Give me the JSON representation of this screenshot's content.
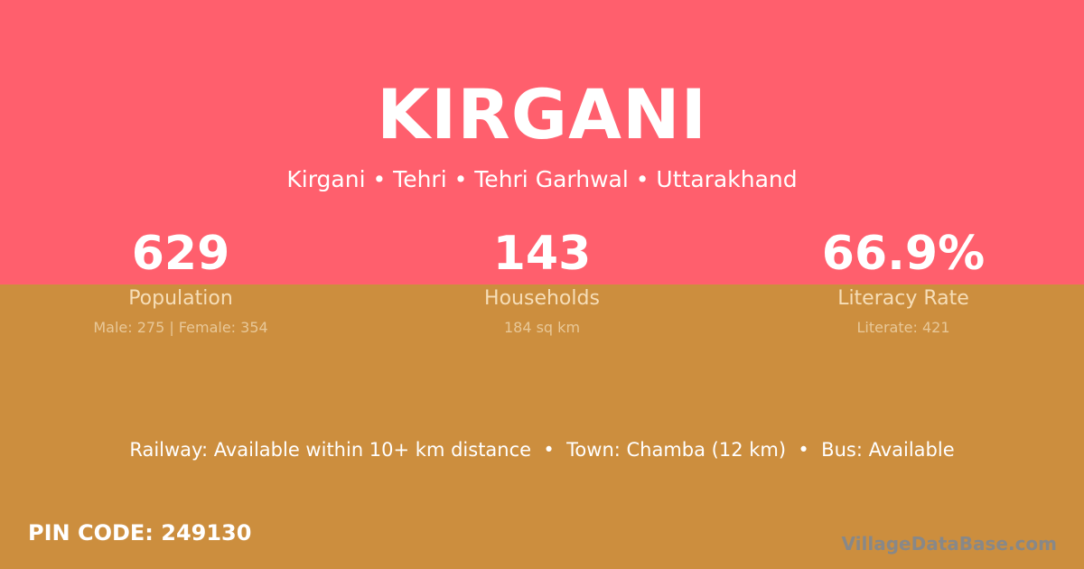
{
  "colors": {
    "top_bg": "#FF5F6D",
    "bottom_bg": "#CC8E3E"
  },
  "title": "KIRGANI",
  "subtitle": "Kirgani • Tehri • Tehri Garhwal • Uttarakhand",
  "stats": [
    {
      "value": "629",
      "label": "Population",
      "detail": "Male: 275 | Female: 354"
    },
    {
      "value": "143",
      "label": "Households",
      "detail": "184 sq km"
    },
    {
      "value": "66.9%",
      "label": "Literacy Rate",
      "detail": "Literate: 421"
    }
  ],
  "connectivity": "Railway: Available within 10+ km distance  •  Town: Chamba (12 km)  •  Bus: Available",
  "pin_code": "PIN CODE: 249130",
  "watermark": "VillageDataBase.com"
}
